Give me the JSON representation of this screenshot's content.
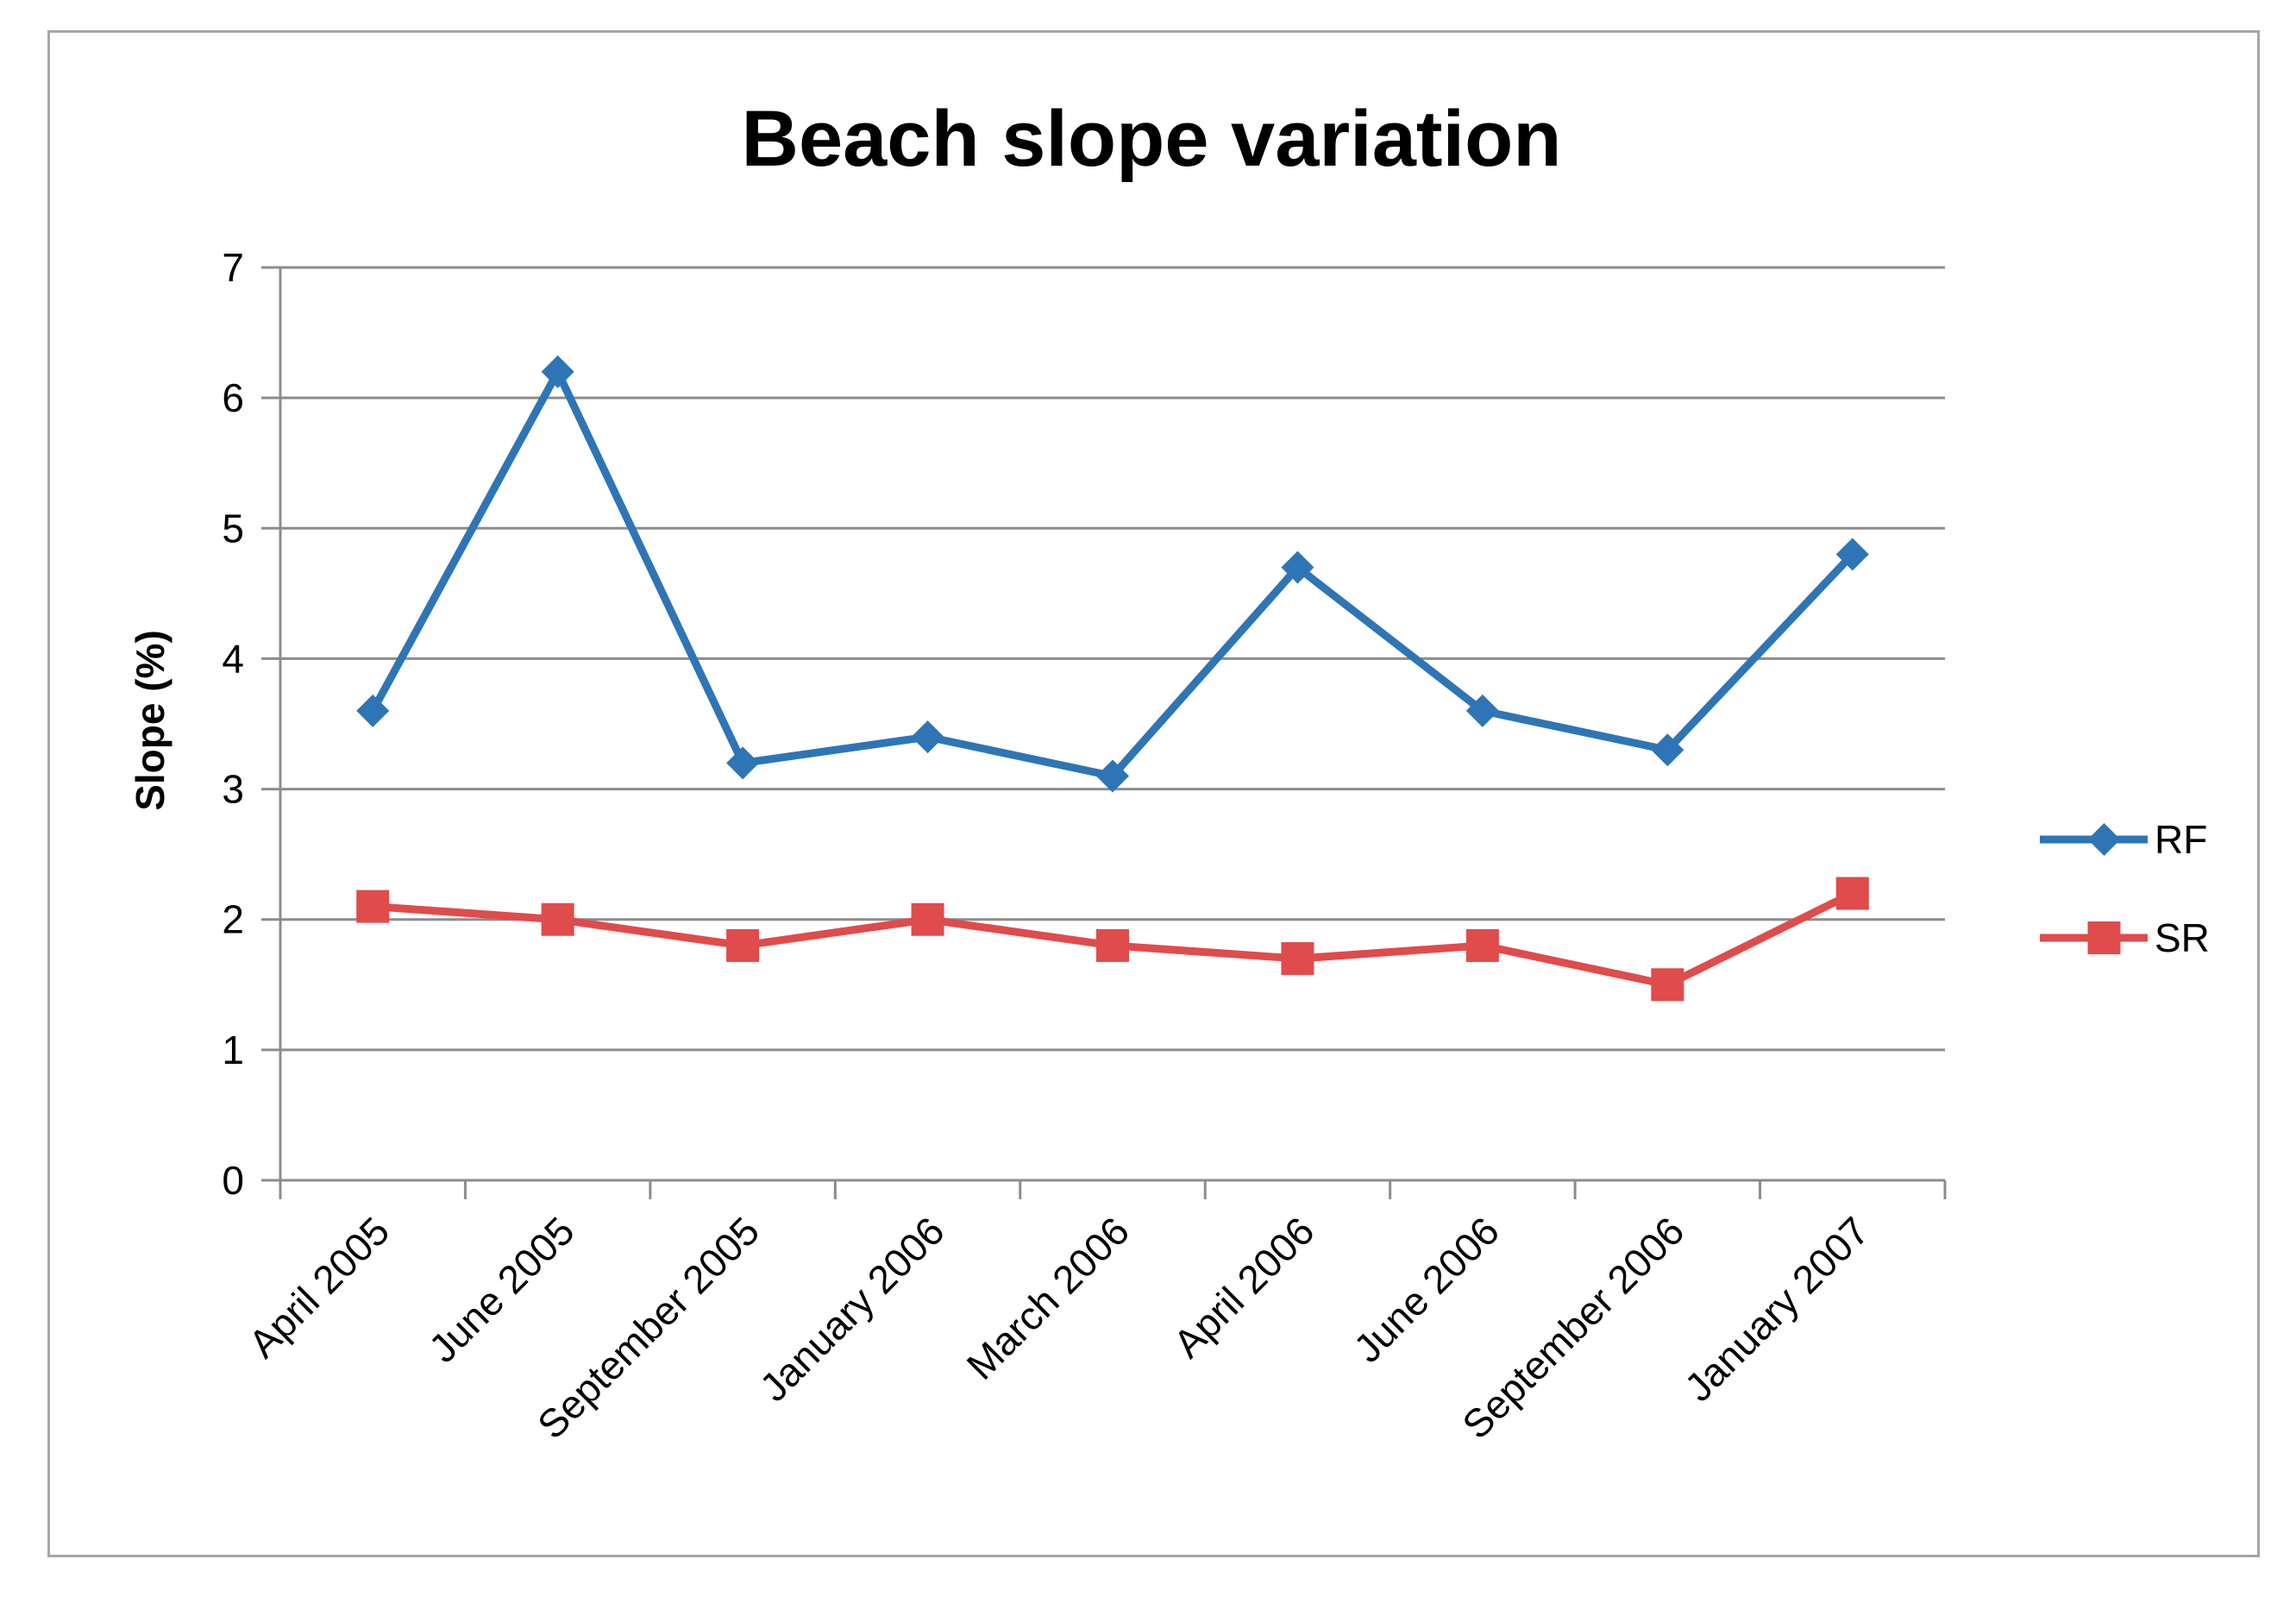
{
  "chart_data": {
    "type": "line",
    "title": "Beach slope variation",
    "xlabel": "",
    "ylabel": "Slope (%)",
    "categories": [
      "April 2005",
      "June 2005",
      "September 2005",
      "January 2006",
      "March 2006",
      "April 2006",
      "June 2006",
      "September 2006",
      "January 2007"
    ],
    "ylim": [
      0,
      7
    ],
    "yticks": [
      "0",
      "1",
      "2",
      "3",
      "4",
      "5",
      "6",
      "7"
    ],
    "grid": "horizontal",
    "legend_position": "right",
    "series": [
      {
        "name": "RF",
        "color": "#2e75b6",
        "marker": "diamond",
        "values": [
          3.6,
          6.2,
          3.2,
          3.4,
          3.1,
          4.7,
          3.6,
          3.3,
          4.8
        ]
      },
      {
        "name": "SR",
        "color": "#e04b4b",
        "marker": "square",
        "values": [
          2.1,
          2.0,
          1.8,
          2.0,
          1.8,
          1.7,
          1.8,
          1.5,
          2.2
        ]
      }
    ]
  }
}
